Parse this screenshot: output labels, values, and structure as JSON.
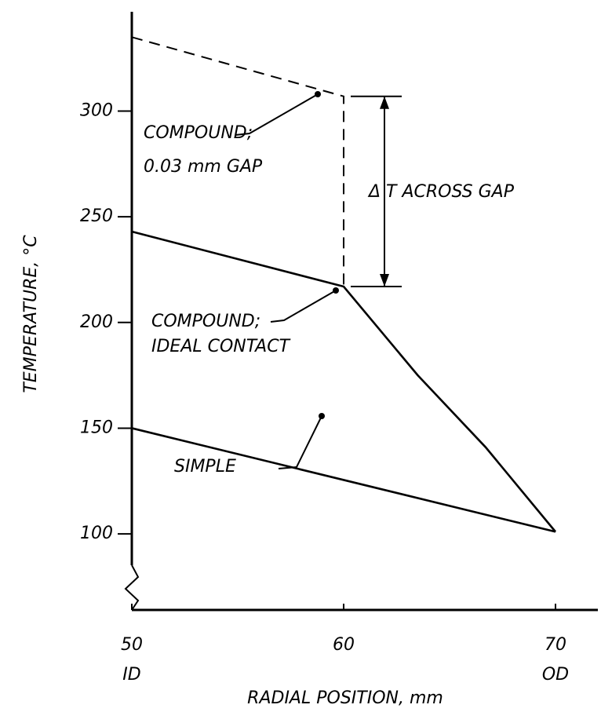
{
  "chart_data": {
    "type": "line",
    "xlabel": "RADIAL POSITION, mm",
    "ylabel": "TEMPERATURE, °C",
    "xlim": [
      50,
      72
    ],
    "ylim": [
      64,
      347
    ],
    "xticks": [
      50,
      60,
      70
    ],
    "yticks": [
      100,
      150,
      200,
      250,
      300
    ],
    "series": [
      {
        "name": "COMPOUND; 0.03 mm GAP",
        "color": "#000000",
        "dashed": true,
        "x": [
          50,
          60,
          60
        ],
        "values": [
          335,
          307,
          217
        ]
      },
      {
        "name": "COMPOUND; IDEAL CONTACT",
        "color": "#000000",
        "dashed": false,
        "x": [
          50,
          60,
          63.5,
          66.7,
          70
        ],
        "values": [
          243,
          217,
          175,
          141,
          101
        ]
      },
      {
        "name": "SIMPLE",
        "color": "#000000",
        "dashed": false,
        "x": [
          50,
          70
        ],
        "values": [
          150,
          101
        ]
      }
    ],
    "annotations": [
      "COMPOUND;",
      "0.03 mm GAP",
      "Δ T ACROSS GAP",
      "COMPOUND;",
      "IDEAL CONTACT",
      "SIMPLE",
      "ID",
      "OD"
    ]
  }
}
